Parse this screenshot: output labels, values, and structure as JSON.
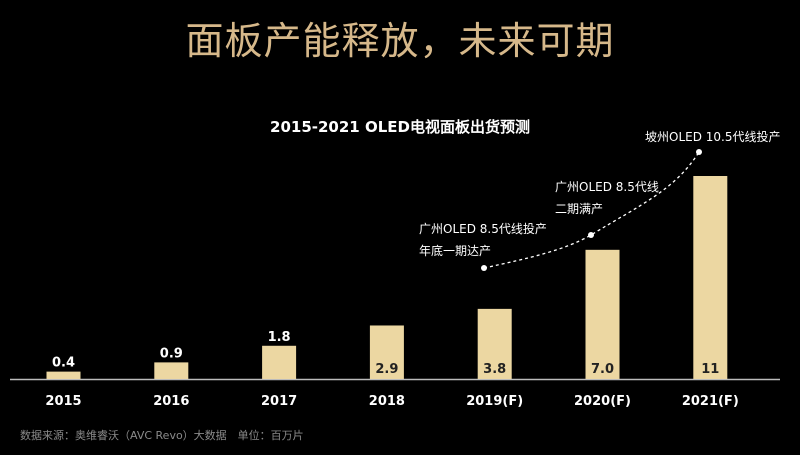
{
  "header": {
    "title": "面板产能释放，未来可期"
  },
  "colors": {
    "bar": "#ecd7a2",
    "title": "#d6b88a",
    "axis": "#bbbbbb"
  },
  "chart_data": {
    "type": "bar",
    "title": "2015-2021 OLED电视面板出货预测",
    "categories": [
      "2015",
      "2016",
      "2017",
      "2018",
      "2019(F)",
      "2020(F)",
      "2021(F)"
    ],
    "values": [
      0.4,
      0.9,
      1.8,
      2.9,
      3.8,
      7.0,
      11
    ],
    "data_labels": [
      "0.4",
      "0.9",
      "1.8",
      "2.9",
      "3.8",
      "7.0",
      "11"
    ],
    "xlabel": "",
    "ylabel": "",
    "ylim": [
      0,
      11
    ],
    "grid": false,
    "annotations": [
      {
        "category": "2019(F)",
        "lines": [
          "广州OLED 8.5代线投产",
          "年底一期达产"
        ]
      },
      {
        "category": "2020(F)",
        "lines": [
          "广州OLED 8.5代线",
          "二期满产"
        ]
      },
      {
        "category": "2021(F)",
        "lines": [
          "坡州OLED 10.5代线投产"
        ]
      }
    ]
  },
  "footer": {
    "source": "数据来源：奥维睿沃（AVC Revo）大数据　单位：百万片"
  }
}
